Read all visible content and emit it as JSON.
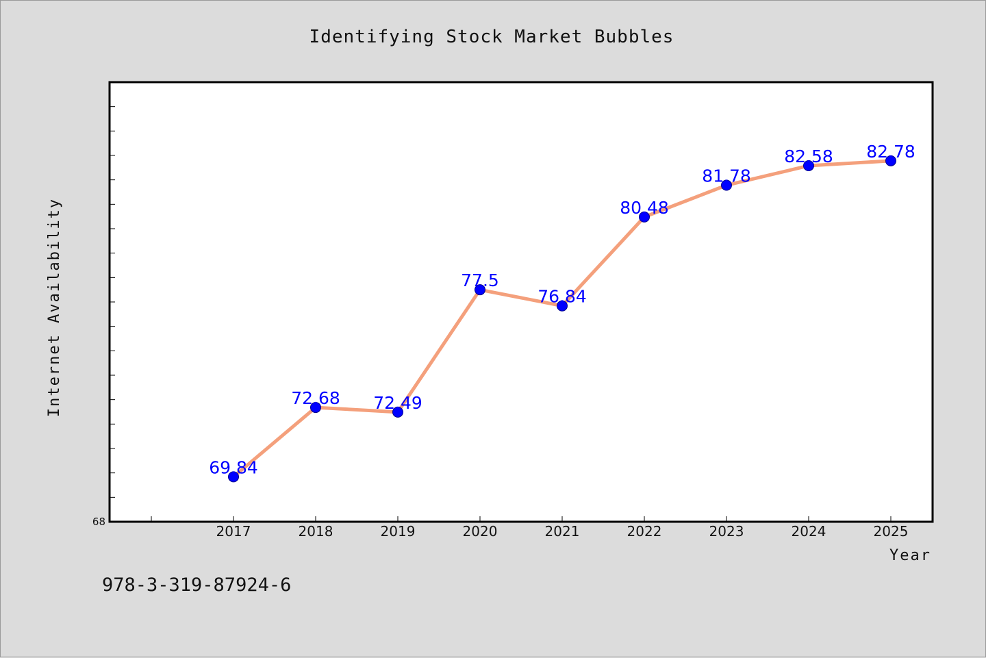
{
  "chart_data": {
    "type": "line",
    "title": "Identifying Stock Market Bubbles",
    "xlabel": "Year",
    "ylabel": "Internet Availability",
    "categories": [
      "2017",
      "2018",
      "2019",
      "2020",
      "2021",
      "2022",
      "2023",
      "2024",
      "2025"
    ],
    "series": [
      {
        "values": [
          69.84,
          72.68,
          72.49,
          77.5,
          76.84,
          80.48,
          81.78,
          82.58,
          82.78
        ],
        "data_labels": [
          "69.84",
          "72.68",
          "72.49",
          "77.5",
          "76.84",
          "80.48",
          "81.78",
          "82.58",
          "82.78"
        ],
        "line_color": "#f4a07c",
        "marker_color": "#0000ff"
      }
    ],
    "ylim": [
      68,
      86
    ],
    "y_min_label": "68",
    "grid": false,
    "legend": "none",
    "background_color": "#dcdcdc",
    "plot_background_color": "#ffffff",
    "label_color": "#0000ff"
  },
  "footer": {
    "isbn": "978-3-319-87924-6"
  }
}
